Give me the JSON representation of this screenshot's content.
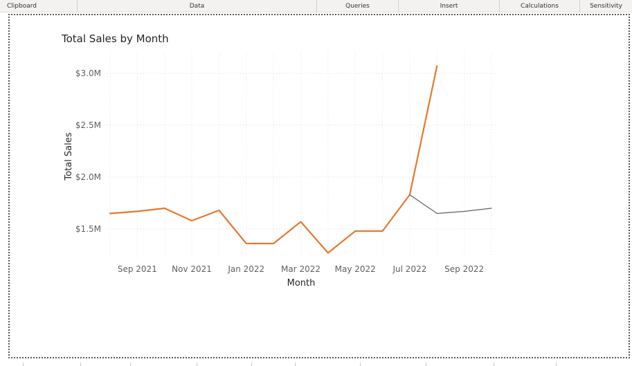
{
  "ribbon": {
    "groups": [
      {
        "label": "Clipboard"
      },
      {
        "label": "Data"
      },
      {
        "label": "Queries"
      },
      {
        "label": "Insert"
      },
      {
        "label": "Calculations"
      },
      {
        "label": "Sensitivity"
      }
    ]
  },
  "chart_data": {
    "type": "line",
    "title": "Total Sales by Month",
    "xlabel": "Month",
    "ylabel": "Total Sales",
    "x": [
      "Aug 2021",
      "Sep 2021",
      "Oct 2021",
      "Nov 2021",
      "Dec 2021",
      "Jan 2022",
      "Feb 2022",
      "Mar 2022",
      "Apr 2022",
      "May 2022",
      "Jun 2022",
      "Jul 2022",
      "Aug 2022",
      "Sep 2022",
      "Oct 2022"
    ],
    "x_tick_labels": [
      "Sep 2021",
      "Nov 2021",
      "Jan 2022",
      "Mar 2022",
      "May 2022",
      "Jul 2022",
      "Sep 2022"
    ],
    "y_tick_labels": [
      "$1.5M",
      "$2.0M",
      "$2.5M",
      "$3.0M"
    ],
    "y_ticks": [
      1.5,
      2.0,
      2.5,
      3.0
    ],
    "ylim": [
      1.2,
      3.1
    ],
    "grid": true,
    "series": [
      {
        "color": "#E8772E",
        "values": [
          1.65,
          1.67,
          1.7,
          1.58,
          1.68,
          1.36,
          1.36,
          1.57,
          1.27,
          1.48,
          1.48,
          1.83,
          3.07,
          null,
          null
        ]
      },
      {
        "color": "#5F5F6E",
        "values": [
          null,
          null,
          null,
          null,
          null,
          null,
          null,
          null,
          null,
          null,
          null,
          1.83,
          1.65,
          1.67,
          1.7
        ]
      }
    ]
  }
}
